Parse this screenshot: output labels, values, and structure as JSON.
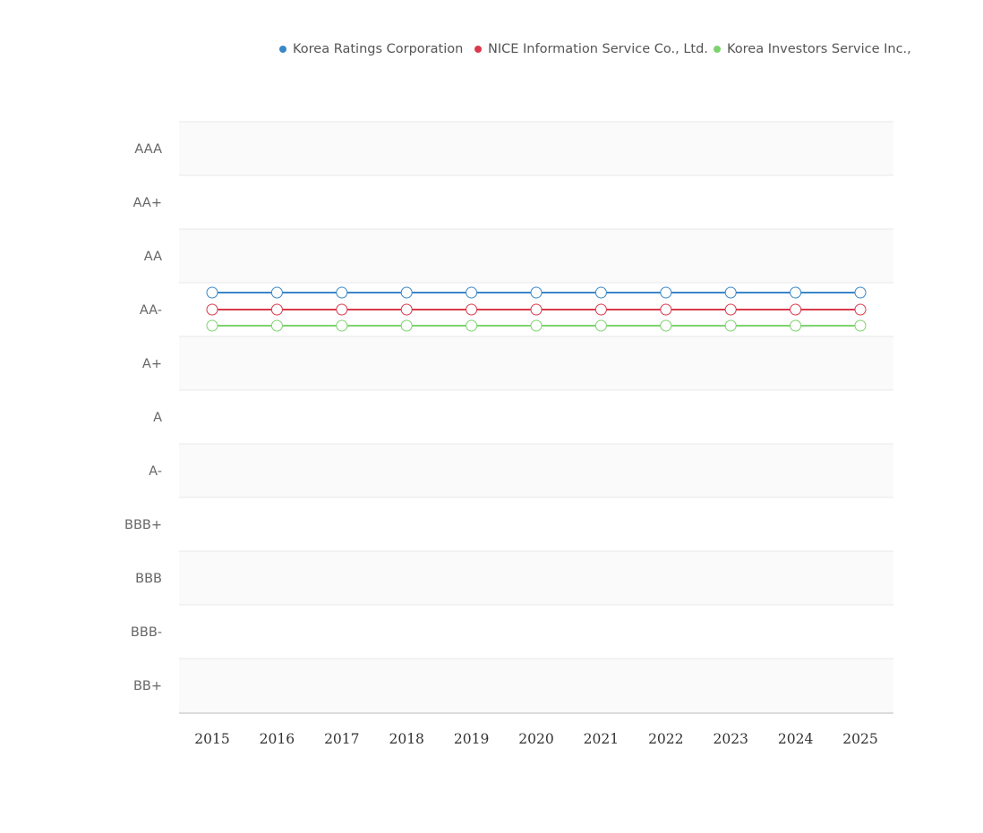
{
  "colors": {
    "band": "#fafafa",
    "gridline": "#e8e8e8",
    "axis": "#dcdcdc"
  },
  "chart_data": {
    "type": "line",
    "title": "",
    "xlabel": "",
    "ylabel": "",
    "legend_position": "top-right",
    "grid": true,
    "x": [
      "2015",
      "2016",
      "2017",
      "2018",
      "2019",
      "2020",
      "2021",
      "2022",
      "2023",
      "2024",
      "2025"
    ],
    "y_categories": [
      "AAA",
      "AA+",
      "AA",
      "AA-",
      "A+",
      "A",
      "A-",
      "BBB+",
      "BBB",
      "BBB-",
      "BB+"
    ],
    "series": [
      {
        "name": "Korea Ratings Corporation",
        "color": "#3a87c8",
        "values": [
          "AA-",
          "AA-",
          "AA-",
          "AA-",
          "AA-",
          "AA-",
          "AA-",
          "AA-",
          "AA-",
          "AA-",
          "AA-"
        ]
      },
      {
        "name": "NICE Information Service Co., Ltd.",
        "color": "#d93a4b",
        "values": [
          "AA-",
          "AA-",
          "AA-",
          "AA-",
          "AA-",
          "AA-",
          "AA-",
          "AA-",
          "AA-",
          "AA-",
          "AA-"
        ]
      },
      {
        "name": "Korea Investors Service Inc.,",
        "color": "#7ed36f",
        "values": [
          "AA-",
          "AA-",
          "AA-",
          "AA-",
          "AA-",
          "AA-",
          "AA-",
          "AA-",
          "AA-",
          "AA-",
          "AA-"
        ]
      }
    ]
  }
}
